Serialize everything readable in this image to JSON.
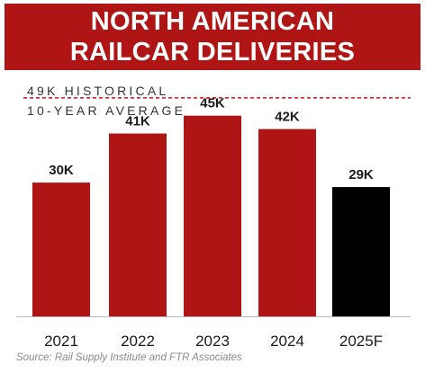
{
  "title_lines": [
    "NORTH AMERICAN",
    "RAILCAR DELIVERIES"
  ],
  "source": "Source: Rail Supply Institute and FTR Associates",
  "colors": {
    "banner": "#b01515",
    "bar": "#b01515",
    "forecast_bar": "#000000",
    "reference_line": "#c0141c",
    "text": "#1a1a1a"
  },
  "chart_data": {
    "type": "bar",
    "categories": [
      "2021",
      "2022",
      "2023",
      "2024",
      "2025F"
    ],
    "values": [
      30,
      41,
      45,
      42,
      29
    ],
    "value_labels": [
      "30K",
      "41K",
      "45K",
      "42K",
      "29K"
    ],
    "forecast": [
      false,
      false,
      false,
      false,
      true
    ],
    "unit": "thousand railcars",
    "ylim": [
      0,
      53
    ],
    "grid": false,
    "reference_line": {
      "value": 49,
      "style": "dashed",
      "label_lines": [
        "49K HISTORICAL",
        "10-YEAR AVERAGE"
      ]
    }
  }
}
